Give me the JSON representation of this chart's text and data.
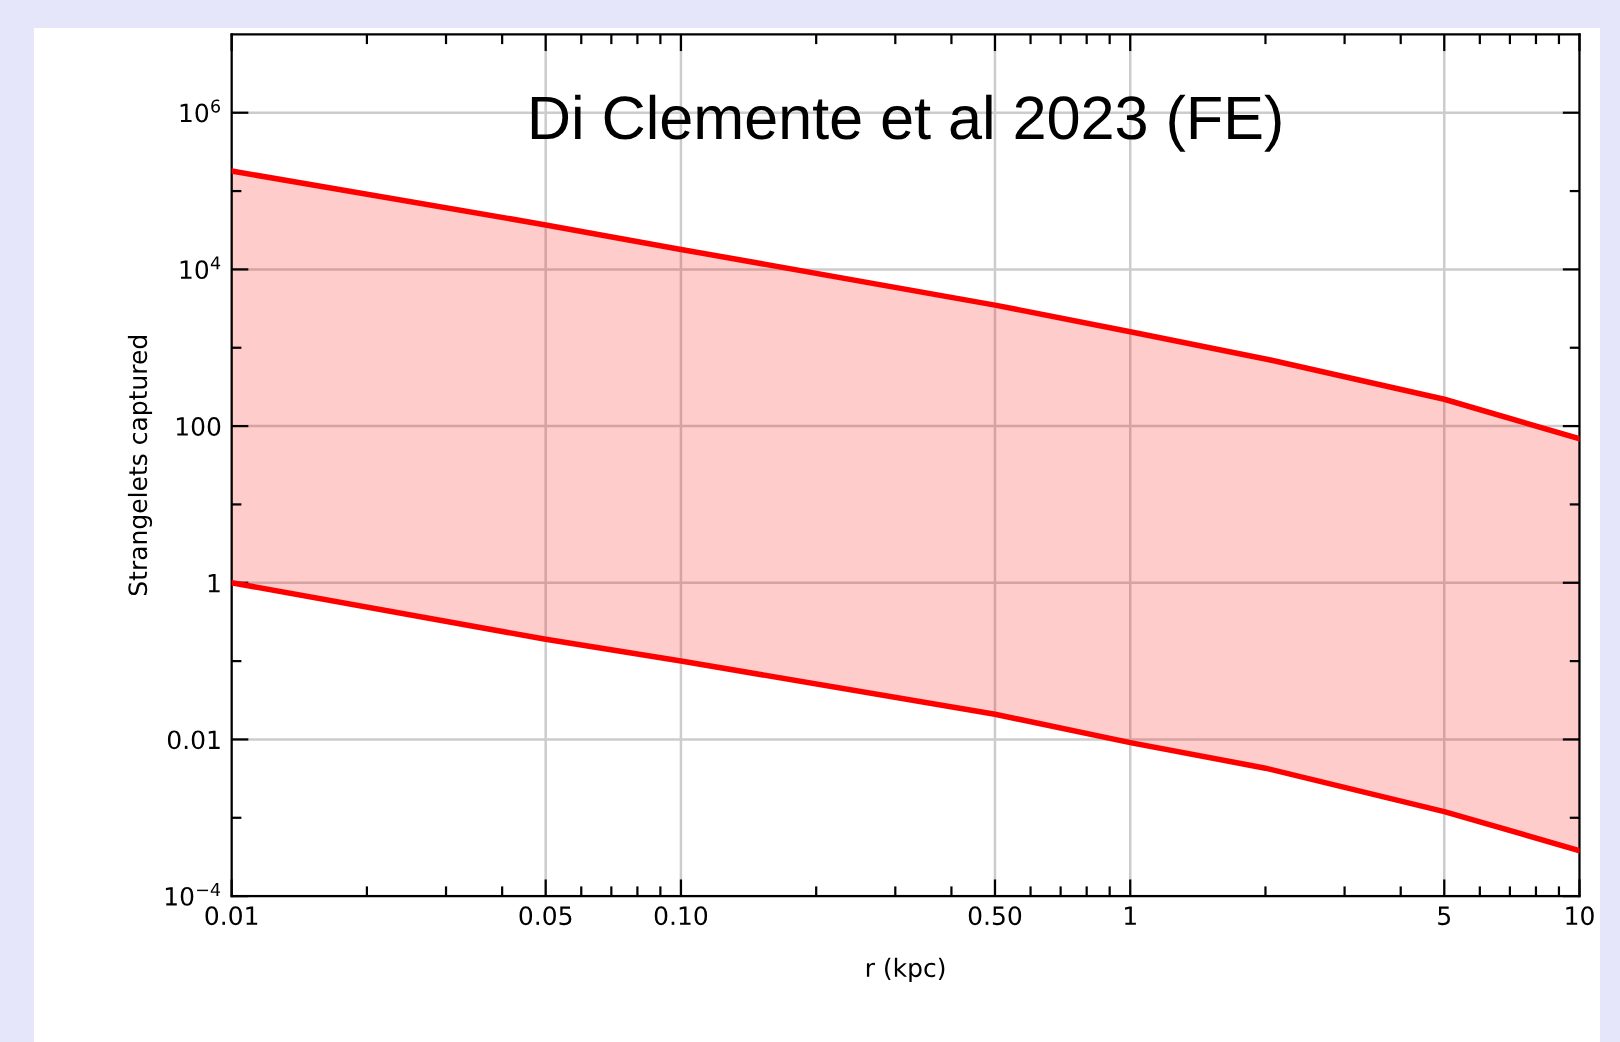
{
  "chart_data": {
    "type": "line",
    "title": "Di Clemente et al 2023 (FE)",
    "xlabel": "r (kpc)",
    "ylabel": "Strangelets captured",
    "log": "xy",
    "grid": true,
    "xlim": [
      0.01,
      10
    ],
    "ylim": [
      0.0001,
      10000000
    ],
    "xticks": [
      {
        "value": 0.01,
        "label": "0.01"
      },
      {
        "value": 0.02,
        "label": null
      },
      {
        "value": 0.03,
        "label": null
      },
      {
        "value": 0.04,
        "label": null
      },
      {
        "value": 0.05,
        "label": "0.05"
      },
      {
        "value": 0.06,
        "label": null
      },
      {
        "value": 0.07,
        "label": null
      },
      {
        "value": 0.08,
        "label": null
      },
      {
        "value": 0.09,
        "label": null
      },
      {
        "value": 0.1,
        "label": "0.10"
      },
      {
        "value": 0.2,
        "label": null
      },
      {
        "value": 0.3,
        "label": null
      },
      {
        "value": 0.4,
        "label": null
      },
      {
        "value": 0.5,
        "label": "0.50"
      },
      {
        "value": 0.6,
        "label": null
      },
      {
        "value": 0.7,
        "label": null
      },
      {
        "value": 0.8,
        "label": null
      },
      {
        "value": 0.9,
        "label": null
      },
      {
        "value": 1,
        "label": "1"
      },
      {
        "value": 2,
        "label": null
      },
      {
        "value": 3,
        "label": null
      },
      {
        "value": 4,
        "label": null
      },
      {
        "value": 5,
        "label": "5"
      },
      {
        "value": 6,
        "label": null
      },
      {
        "value": 7,
        "label": null
      },
      {
        "value": 8,
        "label": null
      },
      {
        "value": 9,
        "label": null
      },
      {
        "value": 10,
        "label": "10"
      }
    ],
    "yticks": [
      {
        "value": 0.0001,
        "label": "10$^{−4}$"
      },
      {
        "value": 0.001,
        "label": null
      },
      {
        "value": 0.01,
        "label": "0.01"
      },
      {
        "value": 0.1,
        "label": null
      },
      {
        "value": 1,
        "label": "1"
      },
      {
        "value": 10,
        "label": null
      },
      {
        "value": 100,
        "label": "100"
      },
      {
        "value": 1000,
        "label": null
      },
      {
        "value": 10000,
        "label": "10$^{4}$"
      },
      {
        "value": 100000,
        "label": null
      },
      {
        "value": 1000000,
        "label": "10$^{6}$"
      }
    ],
    "x": [
      0.01,
      0.05,
      0.1,
      0.5,
      1,
      2,
      5,
      10
    ],
    "series": [
      {
        "color": "#ff0000",
        "values": [
          180000,
          37000,
          18000,
          3500,
          1600,
          720,
          220,
          69
        ],
        "lower": [
          1,
          0.19,
          0.1,
          0.021,
          0.0091,
          0.0043,
          0.0012,
          0.00038
        ],
        "upper": [
          180000,
          37000,
          18000,
          3500,
          1600,
          720,
          220,
          69
        ]
      },
      {
        "color": "#ff0000",
        "values": [
          1,
          0.19,
          0.1,
          0.021,
          0.0091,
          0.0043,
          0.0012,
          0.00038
        ]
      }
    ]
  }
}
